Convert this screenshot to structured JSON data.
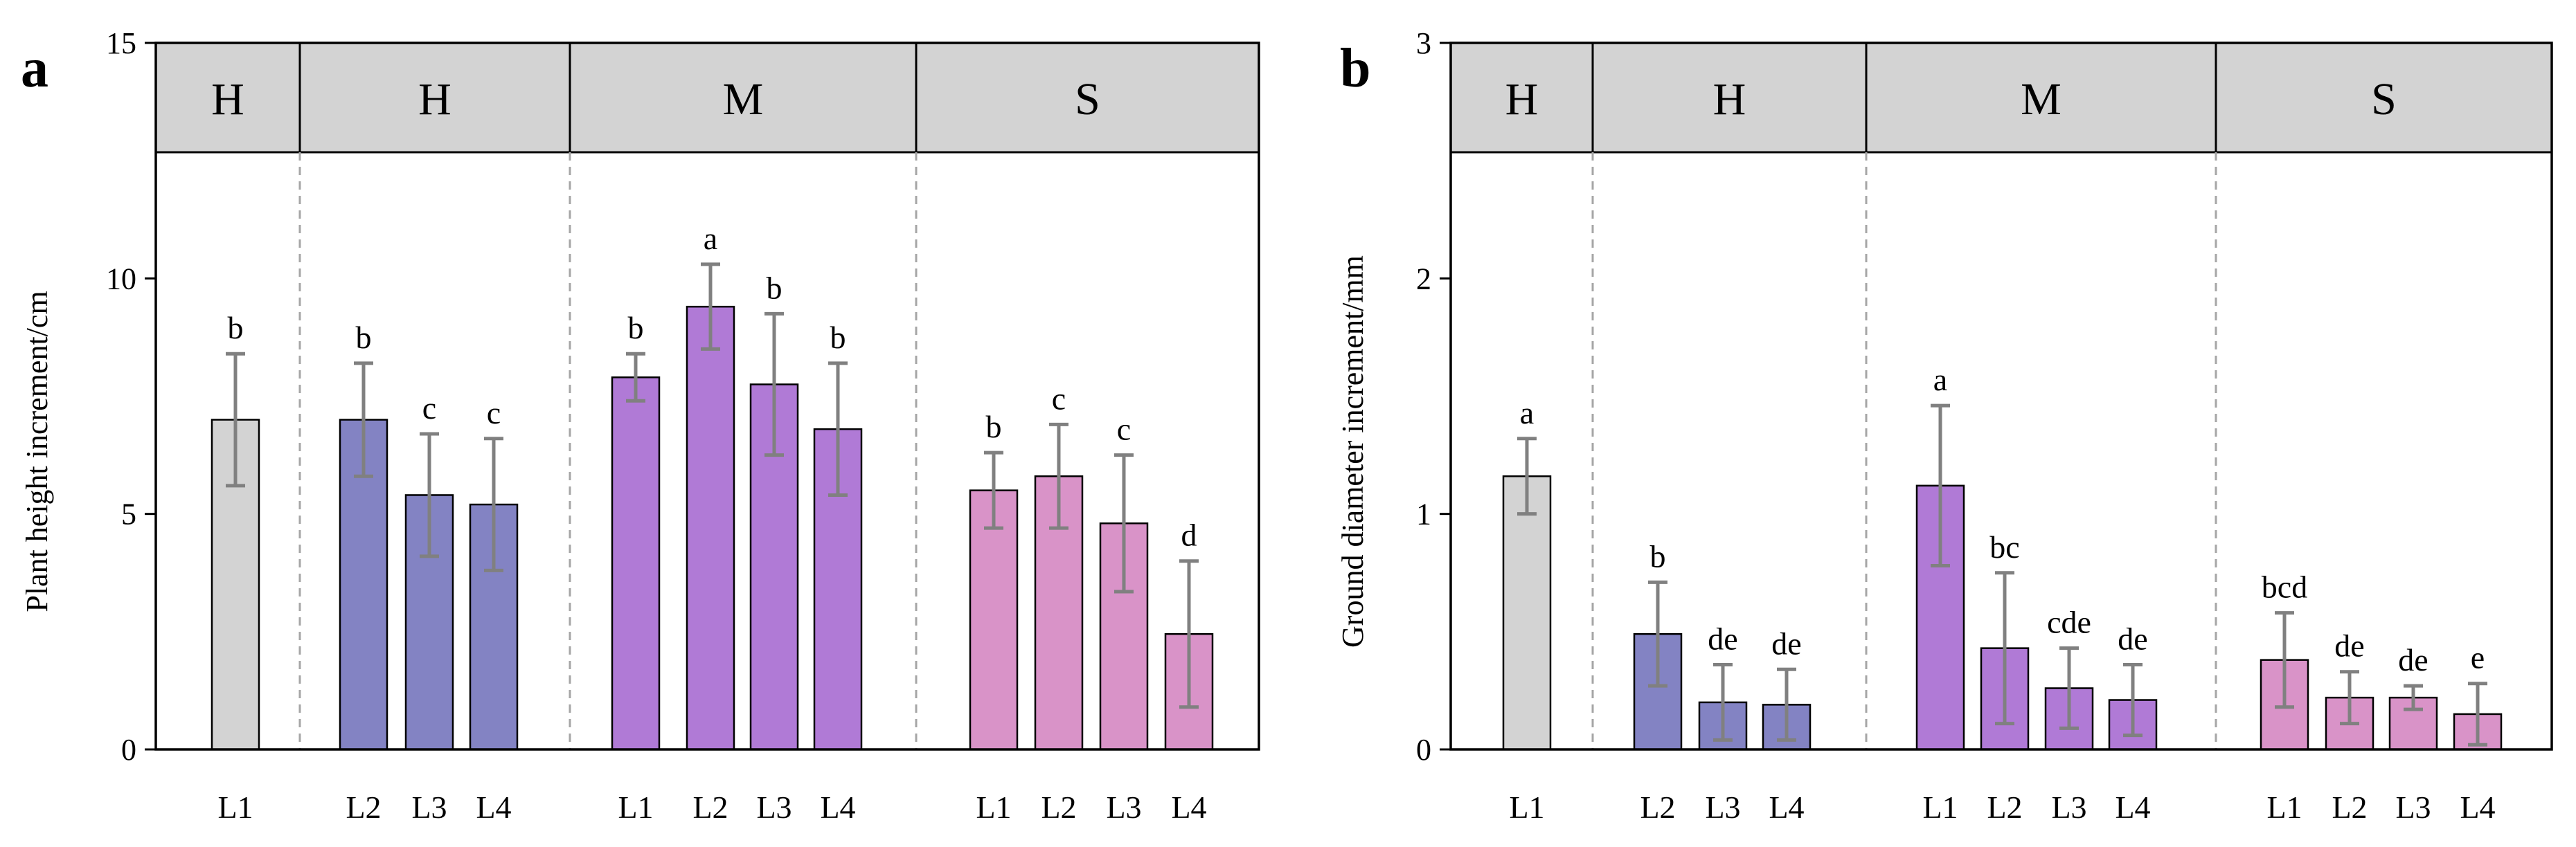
{
  "colors": {
    "H_L1": "#d3d3d3",
    "H": "#8383c3",
    "M": "#b07ad6",
    "S": "#d993c8",
    "header_bg": "#d3d3d3",
    "error_bar": "#808080",
    "divider": "#a6a6a6"
  },
  "chart_data": [
    {
      "type": "bar",
      "panel": "a",
      "title": "",
      "xlabel": "",
      "ylabel": "Plant height increment/cm",
      "ylim": [
        0,
        15
      ],
      "yticks": [
        "0",
        "5",
        "10",
        "15"
      ],
      "groups": [
        {
          "header": "H",
          "color_key": "H_L1",
          "bars": [
            {
              "label": "L1",
              "value": 7.0,
              "error": 1.4,
              "sig": "b"
            }
          ]
        },
        {
          "header": "H",
          "color_key": "H",
          "bars": [
            {
              "label": "L2",
              "value": 7.0,
              "error": 1.2,
              "sig": "b"
            },
            {
              "label": "L3",
              "value": 5.4,
              "error": 1.3,
              "sig": "c"
            },
            {
              "label": "L4",
              "value": 5.2,
              "error": 1.4,
              "sig": "c"
            }
          ]
        },
        {
          "header": "M",
          "color_key": "M",
          "bars": [
            {
              "label": "L1",
              "value": 7.9,
              "error": 0.5,
              "sig": "b"
            },
            {
              "label": "L2",
              "value": 9.4,
              "error": 0.9,
              "sig": "a"
            },
            {
              "label": "L3",
              "value": 7.75,
              "error": 1.5,
              "sig": "b"
            },
            {
              "label": "L4",
              "value": 6.8,
              "error": 1.4,
              "sig": "b"
            }
          ]
        },
        {
          "header": "S",
          "color_key": "S",
          "bars": [
            {
              "label": "L1",
              "value": 5.5,
              "error": 0.8,
              "sig": "b"
            },
            {
              "label": "L2",
              "value": 5.8,
              "error": 1.1,
              "sig": "c"
            },
            {
              "label": "L3",
              "value": 4.8,
              "error": 1.45,
              "sig": "c"
            },
            {
              "label": "L4",
              "value": 2.45,
              "error": 1.55,
              "sig": "d"
            }
          ]
        }
      ]
    },
    {
      "type": "bar",
      "panel": "b",
      "title": "",
      "xlabel": "",
      "ylabel": "Ground diameter increment/mm",
      "ylim": [
        0,
        3
      ],
      "yticks": [
        "0",
        "1",
        "2",
        "3"
      ],
      "groups": [
        {
          "header": "H",
          "color_key": "H_L1",
          "bars": [
            {
              "label": "L1",
              "value": 1.16,
              "error": 0.16,
              "sig": "a"
            }
          ]
        },
        {
          "header": "H",
          "color_key": "H",
          "bars": [
            {
              "label": "L2",
              "value": 0.49,
              "error": 0.22,
              "sig": "b"
            },
            {
              "label": "L3",
              "value": 0.2,
              "error": 0.16,
              "sig": "de"
            },
            {
              "label": "L4",
              "value": 0.19,
              "error": 0.15,
              "sig": "de"
            }
          ]
        },
        {
          "header": "M",
          "color_key": "M",
          "bars": [
            {
              "label": "L1",
              "value": 1.12,
              "error": 0.34,
              "sig": "a"
            },
            {
              "label": "L2",
              "value": 0.43,
              "error": 0.32,
              "sig": "bc"
            },
            {
              "label": "L3",
              "value": 0.26,
              "error": 0.17,
              "sig": "cde"
            },
            {
              "label": "L4",
              "value": 0.21,
              "error": 0.15,
              "sig": "de"
            }
          ]
        },
        {
          "header": "S",
          "color_key": "S",
          "bars": [
            {
              "label": "L1",
              "value": 0.38,
              "error": 0.2,
              "sig": "bcd"
            },
            {
              "label": "L2",
              "value": 0.22,
              "error": 0.11,
              "sig": "de"
            },
            {
              "label": "L3",
              "value": 0.22,
              "error": 0.05,
              "sig": "de"
            },
            {
              "label": "L4",
              "value": 0.15,
              "error": 0.13,
              "sig": "e"
            }
          ]
        }
      ]
    }
  ]
}
